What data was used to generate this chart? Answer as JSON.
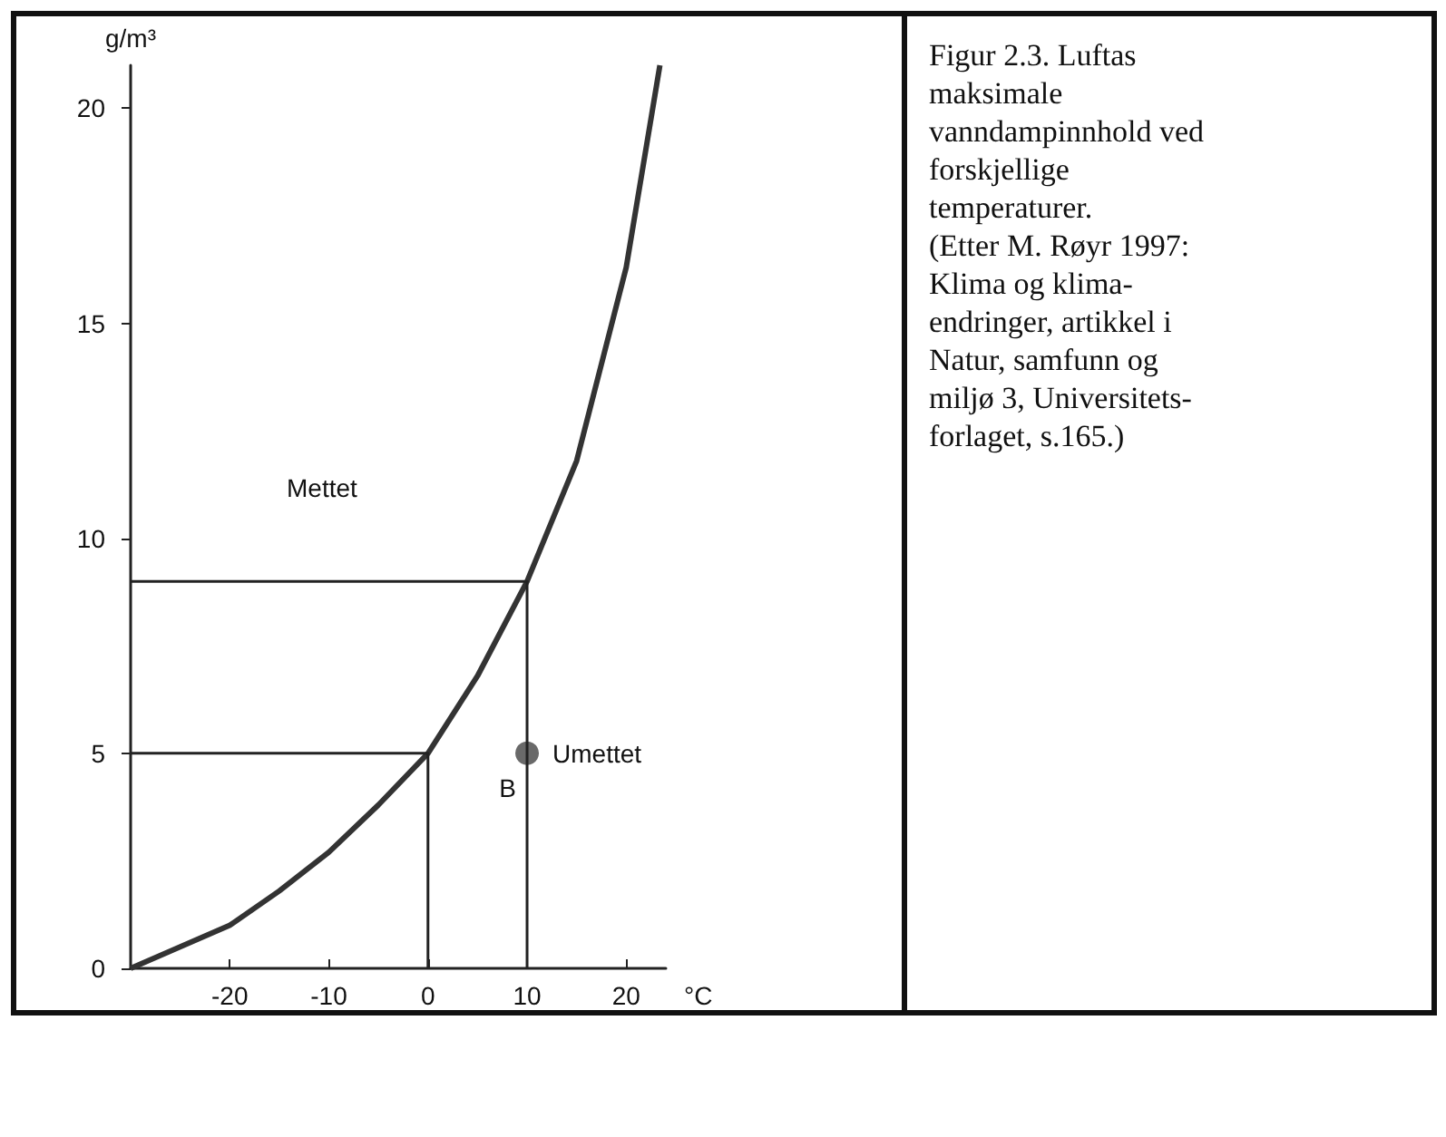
{
  "chart_data": {
    "type": "line",
    "xlabel": "°C",
    "ylabel": "g/m³",
    "xlim": [
      -30,
      24
    ],
    "xticks": [
      -20,
      -10,
      0,
      10,
      20
    ],
    "ylim": [
      0,
      21
    ],
    "yticks": [
      0,
      5,
      10,
      15,
      20
    ],
    "grid": false,
    "marker": "none",
    "series": [
      {
        "color": "#333333",
        "x": [
          -30,
          -25,
          -20,
          -15,
          -10,
          -5,
          0,
          5,
          10,
          15,
          20,
          23.4
        ],
        "values": [
          0,
          0.5,
          1.0,
          1.8,
          2.7,
          3.8,
          5.0,
          6.8,
          9.0,
          11.8,
          16.3,
          21
        ]
      },
      {
        "color": "#222222",
        "x": [
          -30,
          10,
          10
        ],
        "values": [
          9,
          9,
          0
        ]
      },
      {
        "color": "#222222",
        "x": [
          -30,
          0,
          0
        ],
        "values": [
          5,
          5,
          0
        ]
      },
      {
        "type": "scatter",
        "marker": "circle",
        "color": "#444444",
        "x": [
          10
        ],
        "values": [
          5
        ]
      }
    ],
    "annotations": [
      "Mettet",
      {
        "text": "Umettet",
        "x": 10,
        "y": 5
      },
      {
        "text": "B",
        "x": 10,
        "y": 5
      },
      "Figur 2.3. Luftas\nmaksimale\nvanndampinnhold ved\nforskjellige\ntemperaturer.\n(Etter M. Røyr 1997:\nKlima og klima-\nendringer, artikkel i\nNatur, samfunn og\nmiljø 3, Universitets-\nforlaget, s.165.)"
    ]
  }
}
